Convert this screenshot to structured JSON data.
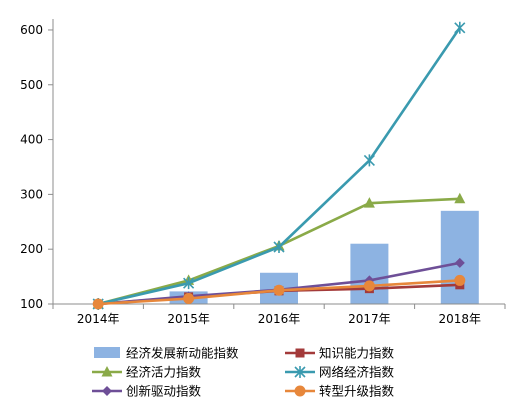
{
  "chart_data": {
    "type": "bar+line",
    "categories": [
      "2014年",
      "2015年",
      "2016年",
      "2017年",
      "2018年"
    ],
    "ylim": [
      100,
      620
    ],
    "yticks": [
      100,
      200,
      300,
      400,
      500,
      600
    ],
    "grid": false,
    "legend_position": "bottom",
    "bar_series": {
      "name": "经济发展新动能指数",
      "color": "#8DB3E2",
      "values": [
        100,
        123,
        157,
        210,
        270
      ]
    },
    "line_series": [
      {
        "name": "知识能力指数",
        "color": "#A33A3A",
        "marker": "square",
        "values": [
          100,
          113,
          124,
          128,
          135
        ]
      },
      {
        "name": "经济活力指数",
        "color": "#8AAA48",
        "marker": "triangle",
        "values": [
          100,
          143,
          206,
          284,
          292
        ]
      },
      {
        "name": "创新驱动指数",
        "color": "#6E4F97",
        "marker": "diamond",
        "values": [
          100,
          114,
          126,
          143,
          175
        ]
      },
      {
        "name": "网络经济指数",
        "color": "#3A9AAF",
        "marker": "star",
        "values": [
          100,
          138,
          204,
          362,
          604
        ]
      },
      {
        "name": "转型升级指数",
        "color": "#E7873B",
        "marker": "circle",
        "values": [
          100,
          110,
          125,
          133,
          143
        ]
      }
    ]
  }
}
